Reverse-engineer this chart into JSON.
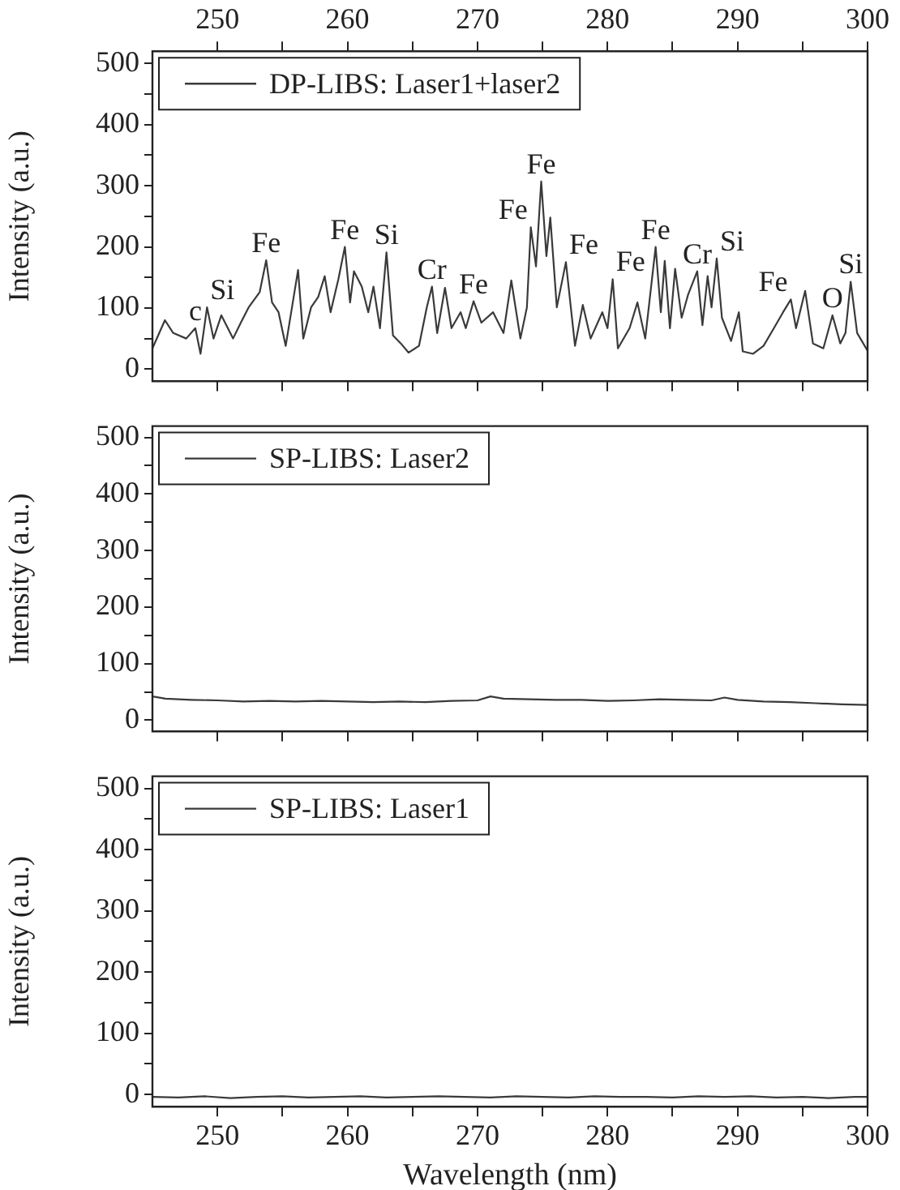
{
  "chart_data": [
    {
      "type": "line",
      "ylabel": "Intensity (a.u.)",
      "legend": "top left",
      "marker": "none",
      "grid": false,
      "tick_labels": "y",
      "xlim": [
        245,
        300
      ],
      "xticks": [
        {
          "value": 250,
          "label": null
        },
        {
          "value": 255,
          "label": null
        },
        {
          "value": 260,
          "label": null
        },
        {
          "value": 265,
          "label": null
        },
        {
          "value": 270,
          "label": null
        },
        {
          "value": 275,
          "label": null
        },
        {
          "value": 280,
          "label": null
        },
        {
          "value": 285,
          "label": null
        },
        {
          "value": 290,
          "label": null
        },
        {
          "value": 295,
          "label": null
        },
        {
          "value": 300,
          "label": null
        }
      ],
      "x2lim": [
        245,
        300
      ],
      "x2ticks": [
        250,
        {
          "value": 255,
          "label": null
        },
        260,
        {
          "value": 265,
          "label": null
        },
        270,
        {
          "value": 275,
          "label": null
        },
        280,
        {
          "value": 285,
          "label": null
        },
        290,
        {
          "value": 295,
          "label": null
        },
        300
      ],
      "ylim": [
        -20,
        520
      ],
      "yticks": [
        0,
        {
          "value": 50,
          "label": null
        },
        100,
        {
          "value": 150,
          "label": null
        },
        200,
        {
          "value": 250,
          "label": null
        },
        300,
        {
          "value": 350,
          "label": null
        },
        400,
        {
          "value": 450,
          "label": null
        },
        500
      ],
      "series": [
        {
          "name": "DP-LIBS: Laser1+laser2",
          "color": "#3a3a3a",
          "x": [
            245,
            245.96,
            246.6,
            247.6,
            248.3,
            248.7,
            249.2,
            249.7,
            250.3,
            251.2,
            251.8,
            252.4,
            253.25,
            253.75,
            254.2,
            254.7,
            255.25,
            256.2,
            256.6,
            257.2,
            257.75,
            258.25,
            258.7,
            259.3,
            259.8,
            260.2,
            260.5,
            261.1,
            261.6,
            262.0,
            262.5,
            263.0,
            263.5,
            264.1,
            264.7,
            265.5,
            266.1,
            266.5,
            266.9,
            267.5,
            268.0,
            268.7,
            269.1,
            269.7,
            270.3,
            271.2,
            272.0,
            272.6,
            273.3,
            273.8,
            274.1,
            274.5,
            274.9,
            275.3,
            275.6,
            276.1,
            276.8,
            277.5,
            278.1,
            278.7,
            279.6,
            280.0,
            280.4,
            280.8,
            281.7,
            282.3,
            282.9,
            283.7,
            284.1,
            284.4,
            284.8,
            285.2,
            285.7,
            286.2,
            286.9,
            287.3,
            287.7,
            288.0,
            288.4,
            288.8,
            289.5,
            290.1,
            290.4,
            291.2,
            292.0,
            292.8,
            293.5,
            294.1,
            294.5,
            295.2,
            295.8,
            296.6,
            297.3,
            297.9,
            298.3,
            298.7,
            299.2,
            300
          ],
          "values": [
            34,
            80,
            59,
            50,
            67,
            25,
            101,
            50,
            88,
            50,
            76,
            101,
            126,
            178,
            109,
            93,
            38,
            162,
            50,
            101,
            118,
            152,
            93,
            147,
            200,
            109,
            160,
            135,
            93,
            135,
            67,
            191,
            55,
            42,
            27,
            38,
            101,
            135,
            59,
            133,
            67,
            93,
            67,
            111,
            76,
            93,
            59,
            145,
            50,
            101,
            232,
            168,
            307,
            185,
            248,
            101,
            175,
            38,
            105,
            50,
            93,
            67,
            147,
            34,
            67,
            109,
            50,
            200,
            93,
            177,
            67,
            164,
            84,
            122,
            160,
            72,
            152,
            101,
            181,
            84,
            46,
            93,
            29,
            25,
            38,
            67,
            93,
            114,
            67,
            128,
            42,
            34,
            88,
            42,
            59,
            143,
            59,
            30
          ]
        }
      ],
      "annotations": [
        {
          "text": "c",
          "x": 248.3,
          "y": 67
        },
        {
          "text": "Si",
          "x": 249.2,
          "y": 101
        },
        {
          "text": "Fe",
          "x": 253.75,
          "y": 178
        },
        {
          "text": "Fe",
          "x": 259.8,
          "y": 200
        },
        {
          "text": "Si",
          "x": 263.0,
          "y": 191
        },
        {
          "text": "Cr",
          "x": 266.5,
          "y": 135
        },
        {
          "text": "Fe",
          "x": 269.7,
          "y": 111
        },
        {
          "text": "Fe",
          "x": 274.1,
          "y": 232
        },
        {
          "text": "Fe",
          "x": 274.9,
          "y": 307
        },
        {
          "text": "Fe",
          "x": 276.8,
          "y": 175
        },
        {
          "text": "Fe",
          "x": 280.4,
          "y": 147
        },
        {
          "text": "Fe",
          "x": 283.7,
          "y": 200
        },
        {
          "text": "Cr",
          "x": 286.9,
          "y": 160
        },
        {
          "text": "Si",
          "x": 288.4,
          "y": 181
        },
        {
          "text": "Fe",
          "x": 294.1,
          "y": 114
        },
        {
          "text": "O",
          "x": 297.3,
          "y": 88
        },
        {
          "text": "Si",
          "x": 298.7,
          "y": 143
        }
      ]
    },
    {
      "type": "line",
      "ylabel": "Intensity (a.u.)",
      "legend": "top left",
      "marker": "none",
      "grid": false,
      "tick_labels": "y",
      "xlim": [
        245,
        300
      ],
      "xticks": [
        {
          "value": 250,
          "label": null
        },
        {
          "value": 255,
          "label": null
        },
        {
          "value": 260,
          "label": null
        },
        {
          "value": 265,
          "label": null
        },
        {
          "value": 270,
          "label": null
        },
        {
          "value": 275,
          "label": null
        },
        {
          "value": 280,
          "label": null
        },
        {
          "value": 285,
          "label": null
        },
        {
          "value": 290,
          "label": null
        },
        {
          "value": 295,
          "label": null
        },
        {
          "value": 300,
          "label": null
        }
      ],
      "ylim": [
        -20,
        520
      ],
      "yticks": [
        0,
        {
          "value": 50,
          "label": null
        },
        100,
        {
          "value": 150,
          "label": null
        },
        200,
        {
          "value": 250,
          "label": null
        },
        300,
        {
          "value": 350,
          "label": null
        },
        400,
        {
          "value": 450,
          "label": null
        },
        500
      ],
      "series": [
        {
          "name": "SP-LIBS: Laser2",
          "color": "#3a3a3a",
          "x": [
            245,
            246,
            248,
            250,
            252,
            254,
            256,
            258,
            260,
            262,
            264,
            266,
            268,
            270,
            271,
            272,
            274,
            276,
            278,
            280,
            282,
            284,
            286,
            288,
            289,
            290,
            292,
            294,
            296,
            298,
            300
          ],
          "values": [
            42,
            38,
            36,
            35,
            33,
            34,
            33,
            34,
            33,
            32,
            33,
            32,
            34,
            35,
            42,
            38,
            37,
            36,
            36,
            34,
            35,
            37,
            36,
            35,
            40,
            36,
            33,
            32,
            30,
            28,
            27
          ]
        }
      ]
    },
    {
      "type": "line",
      "xlabel": "Wavelength (nm)",
      "ylabel": "Intensity (a.u.)",
      "legend": "top left",
      "marker": "none",
      "grid": false,
      "xlim": [
        245,
        300
      ],
      "xticks": [
        250,
        {
          "value": 255,
          "label": null
        },
        260,
        {
          "value": 265,
          "label": null
        },
        270,
        {
          "value": 275,
          "label": null
        },
        280,
        {
          "value": 285,
          "label": null
        },
        290,
        {
          "value": 295,
          "label": null
        },
        300
      ],
      "ylim": [
        -20,
        520
      ],
      "yticks": [
        0,
        {
          "value": 50,
          "label": null
        },
        100,
        {
          "value": 150,
          "label": null
        },
        200,
        {
          "value": 250,
          "label": null
        },
        300,
        {
          "value": 350,
          "label": null
        },
        400,
        {
          "value": 450,
          "label": null
        },
        500
      ],
      "series": [
        {
          "name": "SP-LIBS: Laser1",
          "color": "#3a3a3a",
          "x": [
            245,
            247,
            249,
            251,
            253,
            255,
            257,
            259,
            261,
            263,
            265,
            267,
            269,
            271,
            273,
            275,
            277,
            279,
            281,
            283,
            285,
            287,
            289,
            291,
            293,
            295,
            297,
            299,
            300
          ],
          "values": [
            -4,
            -5,
            -3,
            -6,
            -4,
            -3,
            -5,
            -4,
            -3,
            -5,
            -4,
            -3,
            -4,
            -5,
            -3,
            -4,
            -5,
            -3,
            -4,
            -4,
            -5,
            -3,
            -4,
            -3,
            -5,
            -4,
            -6,
            -4,
            -4
          ]
        }
      ]
    }
  ]
}
